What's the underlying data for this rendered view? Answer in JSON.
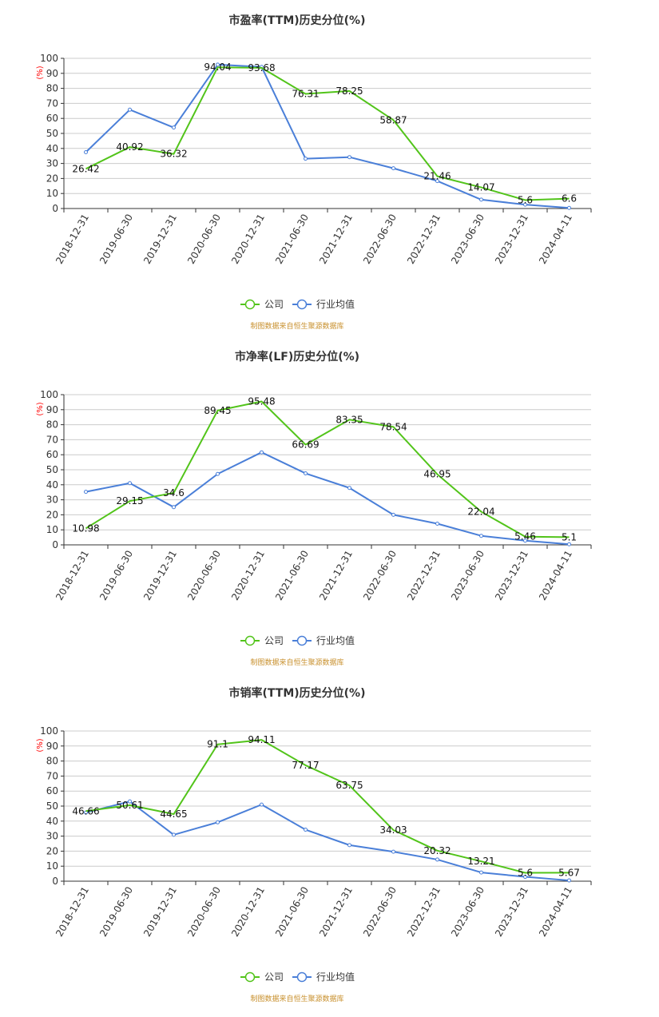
{
  "colors": {
    "company": "#52c41a",
    "industry": "#4a7fd8",
    "grid": "#cccccc",
    "source": "#c8902d"
  },
  "legend": {
    "company": "公司",
    "industry": "行业均值"
  },
  "source_note": "制图数据来自恒生聚源数据库",
  "chart_data": [
    {
      "type": "line",
      "title": "市盈率(TTM)历史分位(%)",
      "ylabel": "(%)",
      "ylim": [
        0,
        100
      ],
      "yticks": [
        "0",
        "10",
        "20",
        "30",
        "40",
        "50",
        "60",
        "70",
        "80",
        "90",
        "100"
      ],
      "categories": [
        "2018-12-31",
        "2019-06-30",
        "2019-12-31",
        "2020-06-30",
        "2020-12-31",
        "2021-06-30",
        "2021-12-31",
        "2022-06-30",
        "2022-12-31",
        "2023-06-30",
        "2023-12-31",
        "2024-04-11"
      ],
      "series": [
        {
          "name": "公司",
          "values": [
            26.42,
            40.92,
            36.32,
            94.04,
            93.68,
            76.31,
            78.25,
            58.87,
            21.46,
            14.07,
            5.6,
            6.6
          ]
        },
        {
          "name": "行业均值",
          "values": [
            37.5,
            65.8,
            53.9,
            95.8,
            94.3,
            33.2,
            34.2,
            26.8,
            18.3,
            5.9,
            2.6,
            0.4
          ]
        }
      ]
    },
    {
      "type": "line",
      "title": "市净率(LF)历史分位(%)",
      "ylabel": "(%)",
      "ylim": [
        0,
        100
      ],
      "yticks": [
        "0",
        "10",
        "20",
        "30",
        "40",
        "50",
        "60",
        "70",
        "80",
        "90",
        "100"
      ],
      "categories": [
        "2018-12-31",
        "2019-06-30",
        "2019-12-31",
        "2020-06-30",
        "2020-12-31",
        "2021-06-30",
        "2021-12-31",
        "2022-06-30",
        "2022-12-31",
        "2023-06-30",
        "2023-12-31",
        "2024-04-11"
      ],
      "series": [
        {
          "name": "公司",
          "values": [
            10.98,
            29.15,
            34.6,
            89.45,
            95.48,
            66.69,
            83.35,
            78.54,
            46.95,
            22.04,
            5.46,
            5.1
          ]
        },
        {
          "name": "行业均值",
          "values": [
            35.3,
            41.1,
            25.1,
            47.2,
            61.6,
            47.6,
            37.9,
            20.0,
            14.1,
            6.0,
            2.8,
            0.4
          ]
        }
      ]
    },
    {
      "type": "line",
      "title": "市销率(TTM)历史分位(%)",
      "ylabel": "(%)",
      "ylim": [
        0,
        100
      ],
      "yticks": [
        "0",
        "10",
        "20",
        "30",
        "40",
        "50",
        "60",
        "70",
        "80",
        "90",
        "100"
      ],
      "categories": [
        "2018-12-31",
        "2019-06-30",
        "2019-12-31",
        "2020-06-30",
        "2020-12-31",
        "2021-06-30",
        "2021-12-31",
        "2022-06-30",
        "2022-12-31",
        "2023-06-30",
        "2023-12-31",
        "2024-04-11"
      ],
      "series": [
        {
          "name": "公司",
          "values": [
            46.66,
            50.61,
            44.65,
            91.1,
            94.11,
            77.17,
            63.75,
            34.03,
            20.32,
            13.21,
            5.6,
            5.67
          ]
        },
        {
          "name": "行业均值",
          "values": [
            45.7,
            53.1,
            30.9,
            39.2,
            51.0,
            34.3,
            24.0,
            19.6,
            14.4,
            5.8,
            2.9,
            0.5
          ]
        }
      ]
    }
  ]
}
